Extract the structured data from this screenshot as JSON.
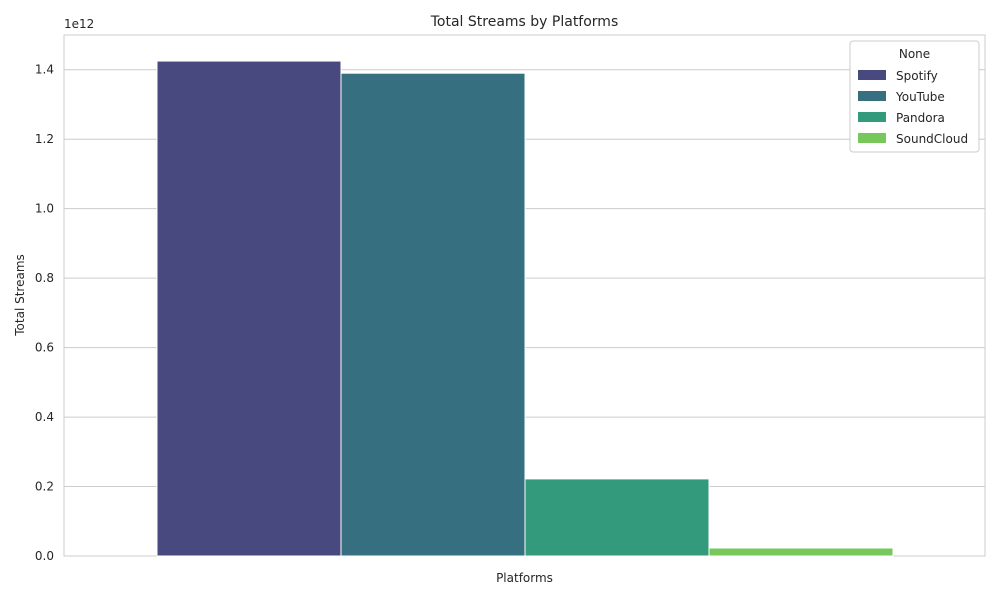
{
  "chart_data": {
    "type": "bar",
    "title": "Total Streams by Platforms",
    "xlabel": "Platforms",
    "ylabel": "Total Streams",
    "offset_label": "1e12",
    "scale": 1000000000000.0,
    "ylim": [
      0,
      1.5
    ],
    "yticks": [
      "0.0",
      "0.2",
      "0.4",
      "0.6",
      "0.8",
      "1.0",
      "1.2",
      "1.4"
    ],
    "ytick_values": [
      0.0,
      0.2,
      0.4,
      0.6,
      0.8,
      1.0,
      1.2,
      1.4
    ],
    "grid": true,
    "legend": {
      "title": "None",
      "placement": "top-right"
    },
    "series": [
      {
        "name": "Spotify",
        "value": 1.425,
        "color": "#48497f"
      },
      {
        "name": "YouTube",
        "value": 1.39,
        "color": "#366f80"
      },
      {
        "name": "Pandora",
        "value": 0.222,
        "color": "#339a7b"
      },
      {
        "name": "SoundCloud",
        "value": 0.023,
        "color": "#77c75a"
      }
    ]
  }
}
